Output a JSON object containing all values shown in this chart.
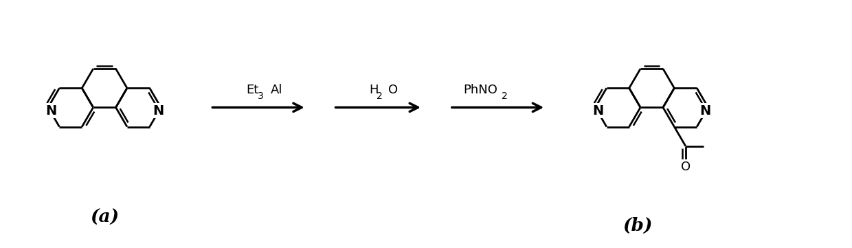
{
  "background_color": "#ffffff",
  "label_a": "(a)",
  "label_b": "(b)",
  "arrow1_label_top": "Et",
  "arrow1_label_sub": "3",
  "arrow1_label_end": "Al",
  "arrow2_label_top": "H",
  "arrow2_label_sub": "2",
  "arrow2_label_end": "O",
  "arrow3_label": "PhNO",
  "arrow3_sub": "2",
  "figsize": [
    12.4,
    3.61
  ],
  "dpi": 100
}
